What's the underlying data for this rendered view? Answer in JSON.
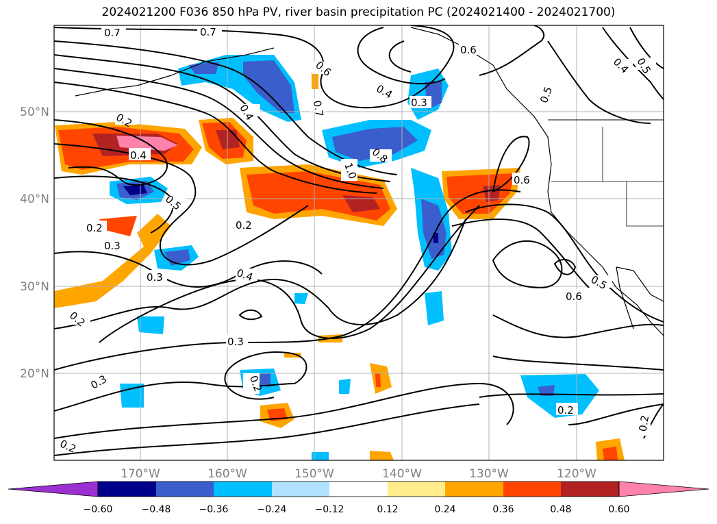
{
  "title": "2024021200 F036 850 hPa PV, river basin precipitation PC (2024021400 - 2024021700)",
  "lon_labels": [
    "170°W",
    "160°W",
    "150°W",
    "140°W",
    "130°W",
    "120°W"
  ],
  "lat_labels": [
    "50°N",
    "40°N",
    "30°N",
    "20°N"
  ],
  "contour_labels": [
    "0.7",
    "0.7",
    "0.6",
    "0.7",
    "0.6",
    "0.4",
    "0.3",
    "0.4",
    "0.2",
    "0.4",
    "0.5",
    "0.2",
    "0.3",
    "0.2",
    "0.3",
    "0.4",
    "0.3",
    "0.2",
    "0.3",
    "0.2",
    "0.2",
    "0.8",
    "1.0",
    "0.5",
    "0.4",
    "0.5",
    "0.6",
    "0.6",
    "0.5",
    "0.2",
    "0.2"
  ],
  "colorbar": {
    "colors": [
      "#9b30d0",
      "#00008b",
      "#3a5fcd",
      "#00bfff",
      "#b0e2ff",
      "#ffffff",
      "#ffec8b",
      "#ffa500",
      "#ff4500",
      "#b22222",
      "#ff82ab"
    ],
    "labels": [
      "−0.60",
      "−0.48",
      "−0.36",
      "−0.24",
      "−0.12",
      "0.12",
      "0.24",
      "0.36",
      "0.48",
      "0.60"
    ]
  }
}
